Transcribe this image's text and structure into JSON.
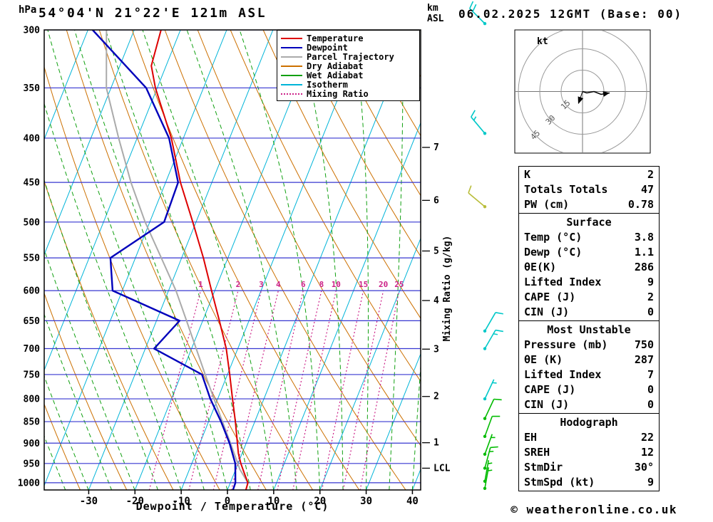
{
  "header": {
    "title": "54°04'N 21°22'E 121m ASL",
    "datetime": "06.02.2025 12GMT (Base: 00)",
    "left_axis_unit": "hPa",
    "right_axis_unit_line1": "km",
    "right_axis_unit_line2": "ASL",
    "copyright": "© weatheronline.co.uk"
  },
  "legend": {
    "items": [
      {
        "label": "Temperature",
        "color": "#dd0000",
        "style": "solid"
      },
      {
        "label": "Dewpoint",
        "color": "#0000bb",
        "style": "solid"
      },
      {
        "label": "Parcel Trajectory",
        "color": "#aaaaaa",
        "style": "solid"
      },
      {
        "label": "Dry Adiabat",
        "color": "#cc7000",
        "style": "solid"
      },
      {
        "label": "Wet Adiabat",
        "color": "#11a011",
        "style": "solid"
      },
      {
        "label": "Isotherm",
        "color": "#00b4d8",
        "style": "solid"
      },
      {
        "label": "Mixing Ratio",
        "color": "#cc2288",
        "style": "dotted"
      }
    ]
  },
  "grid_colors": {
    "pressure_line": "#3737d1",
    "isotherm": "#00b4d8",
    "dry_adiabat": "#cc7000",
    "wet_adiabat": "#11a011",
    "mixing_ratio": "#cc2288",
    "frame": "#000000"
  },
  "chart_data": {
    "type": "line",
    "variant": "skew-t-log-p",
    "title": "54°04'N 21°22'E 121m ASL",
    "xlabel": "Dewpoint / Temperature (°C)",
    "ylabel": "hPa",
    "right_ylabel": "Mixing Ratio (g/kg)",
    "x_ticks_c": [
      -30,
      -20,
      -10,
      0,
      10,
      20,
      30,
      40
    ],
    "pressure_ticks_hpa": [
      300,
      350,
      400,
      450,
      500,
      550,
      600,
      650,
      700,
      750,
      800,
      850,
      900,
      950,
      1000
    ],
    "pressure_range_hpa": [
      300,
      1020
    ],
    "km_asl_ticks": [
      {
        "label": "7",
        "p": 410
      },
      {
        "label": "6",
        "p": 472
      },
      {
        "label": "5",
        "p": 540
      },
      {
        "label": "4",
        "p": 616
      },
      {
        "label": "3",
        "p": 701
      },
      {
        "label": "2",
        "p": 795
      },
      {
        "label": "1",
        "p": 899
      },
      {
        "label": "LCL",
        "p": 962
      }
    ],
    "mixing_ratio_lines_gkg": [
      1,
      2,
      3,
      4,
      6,
      8,
      10,
      15,
      20,
      25
    ],
    "isotherm_step_c": 10,
    "dry_adiabat_step_k": 10,
    "wet_adiabat_step_c": 5,
    "series": [
      {
        "name": "Temperature",
        "color": "#dd0000",
        "width": 2,
        "points_p_t": [
          [
            1020,
            4.0
          ],
          [
            1000,
            3.8
          ],
          [
            975,
            2.2
          ],
          [
            950,
            0.6
          ],
          [
            925,
            -0.8
          ],
          [
            900,
            -1.9
          ],
          [
            850,
            -4.2
          ],
          [
            800,
            -6.8
          ],
          [
            750,
            -9.5
          ],
          [
            700,
            -12.5
          ],
          [
            650,
            -16.4
          ],
          [
            600,
            -20.7
          ],
          [
            550,
            -25.3
          ],
          [
            500,
            -30.7
          ],
          [
            450,
            -36.8
          ],
          [
            400,
            -42.6
          ],
          [
            350,
            -50.4
          ],
          [
            330,
            -53.2
          ],
          [
            300,
            -54.2
          ]
        ]
      },
      {
        "name": "Dewpoint",
        "color": "#0000bb",
        "width": 2.4,
        "points_p_t": [
          [
            1020,
            1.2
          ],
          [
            1000,
            1.1
          ],
          [
            950,
            -0.6
          ],
          [
            900,
            -3.6
          ],
          [
            850,
            -7.3
          ],
          [
            800,
            -11.6
          ],
          [
            750,
            -15.5
          ],
          [
            700,
            -28.1
          ],
          [
            650,
            -25.0
          ],
          [
            600,
            -42.1
          ],
          [
            550,
            -45.4
          ],
          [
            500,
            -36.9
          ],
          [
            450,
            -37.3
          ],
          [
            400,
            -43.1
          ],
          [
            350,
            -52.4
          ],
          [
            300,
            -69.0
          ]
        ]
      },
      {
        "name": "Parcel Trajectory",
        "color": "#aaaaaa",
        "width": 2,
        "points_p_t": [
          [
            1020,
            4.0
          ],
          [
            1000,
            3.8
          ],
          [
            965,
            0.9
          ],
          [
            900,
            -3.4
          ],
          [
            850,
            -7.0
          ],
          [
            800,
            -10.8
          ],
          [
            750,
            -14.8
          ],
          [
            700,
            -19.0
          ],
          [
            650,
            -23.5
          ],
          [
            600,
            -28.4
          ],
          [
            550,
            -34.4
          ],
          [
            500,
            -41.0
          ],
          [
            450,
            -47.5
          ],
          [
            400,
            -54.0
          ],
          [
            350,
            -61.0
          ],
          [
            300,
            -66.0
          ]
        ]
      }
    ]
  },
  "hodograph": {
    "unit_label": "kt",
    "rings_kt": [
      15,
      30,
      45
    ],
    "trace_uv_kt": [
      [
        0,
        0
      ],
      [
        3,
        -1
      ],
      [
        8,
        0
      ],
      [
        13,
        -2
      ],
      [
        19,
        -1
      ]
    ],
    "marker_uv_kt": [
      -2,
      -6
    ]
  },
  "wind_barbs": [
    {
      "p": 295,
      "dir": 315,
      "speed": 20,
      "color": "#00c8c8"
    },
    {
      "p": 395,
      "dir": 320,
      "speed": 15,
      "color": "#00c8c8"
    },
    {
      "p": 480,
      "dir": 310,
      "speed": 10,
      "color": "#b9bd3a"
    },
    {
      "p": 668,
      "dir": 30,
      "speed": 10,
      "color": "#00c8c8"
    },
    {
      "p": 700,
      "dir": 30,
      "speed": 15,
      "color": "#00c8c8"
    },
    {
      "p": 800,
      "dir": 25,
      "speed": 5,
      "color": "#00c8c8"
    },
    {
      "p": 843,
      "dir": 25,
      "speed": 10,
      "color": "#00bb00"
    },
    {
      "p": 884,
      "dir": 20,
      "speed": 10,
      "color": "#00bb00"
    },
    {
      "p": 927,
      "dir": 20,
      "speed": 5,
      "color": "#00bb00"
    },
    {
      "p": 962,
      "dir": 15,
      "speed": 15,
      "color": "#00bb00"
    },
    {
      "p": 996,
      "dir": 10,
      "speed": 5,
      "color": "#00bb00"
    },
    {
      "p": 1015,
      "dir": 10,
      "speed": 5,
      "color": "#00bb00"
    }
  ],
  "tables": {
    "indices": {
      "rows": [
        {
          "label": "K",
          "value": "2"
        },
        {
          "label": "Totals Totals",
          "value": "47"
        },
        {
          "label": "PW (cm)",
          "value": "0.78"
        }
      ]
    },
    "surface": {
      "title": "Surface",
      "rows": [
        {
          "label": "Temp (°C)",
          "value": "3.8"
        },
        {
          "label": "Dewp (°C)",
          "value": "1.1"
        },
        {
          "label": "θE(K)",
          "value": "286"
        },
        {
          "label": "Lifted Index",
          "value": "9"
        },
        {
          "label": "CAPE (J)",
          "value": "2"
        },
        {
          "label": "CIN (J)",
          "value": "0"
        }
      ]
    },
    "most_unstable": {
      "title": "Most Unstable",
      "rows": [
        {
          "label": "Pressure (mb)",
          "value": "750"
        },
        {
          "label": "θE (K)",
          "value": "287"
        },
        {
          "label": "Lifted Index",
          "value": "7"
        },
        {
          "label": "CAPE (J)",
          "value": "0"
        },
        {
          "label": "CIN (J)",
          "value": "0"
        }
      ]
    },
    "hodograph_stats": {
      "title": "Hodograph",
      "rows": [
        {
          "label": "EH",
          "value": "22"
        },
        {
          "label": "SREH",
          "value": "12"
        },
        {
          "label": "StmDir",
          "value": "30°"
        },
        {
          "label": "StmSpd (kt)",
          "value": "9"
        }
      ]
    }
  }
}
